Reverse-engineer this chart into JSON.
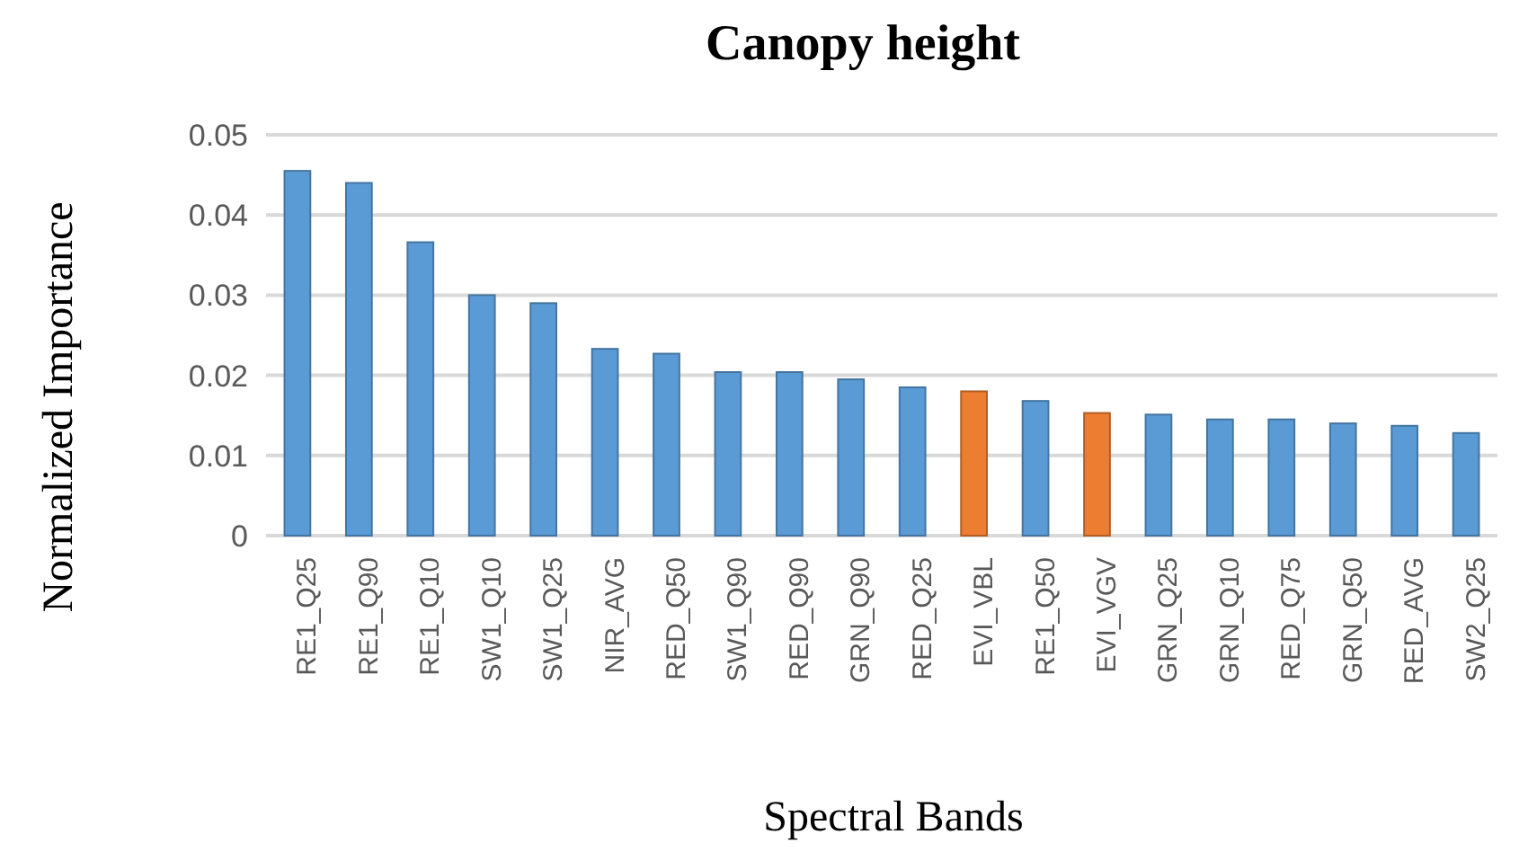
{
  "chart_data": {
    "type": "bar",
    "title": "Canopy height",
    "xlabel": "Spectral Bands",
    "ylabel": "Normalized Importance",
    "categories": [
      "RE1_Q25",
      "RE1_Q90",
      "RE1_Q10",
      "SW1_Q10",
      "SW1_Q25",
      "NIR_AVG",
      "RED_Q50",
      "SW1_Q90",
      "RED_Q90",
      "GRN_Q90",
      "RED_Q25",
      "EVI_VBL",
      "RE1_Q50",
      "EVI_VGV",
      "GRN_Q25",
      "GRN_Q10",
      "RED_Q75",
      "GRN_Q50",
      "RED_AVG",
      "SW2_Q25"
    ],
    "values": [
      0.0455,
      0.044,
      0.0366,
      0.03,
      0.029,
      0.0233,
      0.0227,
      0.0204,
      0.0204,
      0.0195,
      0.0185,
      0.018,
      0.0168,
      0.0153,
      0.0151,
      0.0145,
      0.0145,
      0.014,
      0.0137,
      0.0128
    ],
    "colors": [
      "#5b9bd5",
      "#5b9bd5",
      "#5b9bd5",
      "#5b9bd5",
      "#5b9bd5",
      "#5b9bd5",
      "#5b9bd5",
      "#5b9bd5",
      "#5b9bd5",
      "#5b9bd5",
      "#5b9bd5",
      "#ed7d31",
      "#5b9bd5",
      "#ed7d31",
      "#5b9bd5",
      "#5b9bd5",
      "#5b9bd5",
      "#5b9bd5",
      "#5b9bd5",
      "#5b9bd5"
    ],
    "ylim": [
      0,
      0.05
    ],
    "yticks": [
      0,
      0.01,
      0.02,
      0.03,
      0.04,
      0.05
    ],
    "grid": "y"
  }
}
